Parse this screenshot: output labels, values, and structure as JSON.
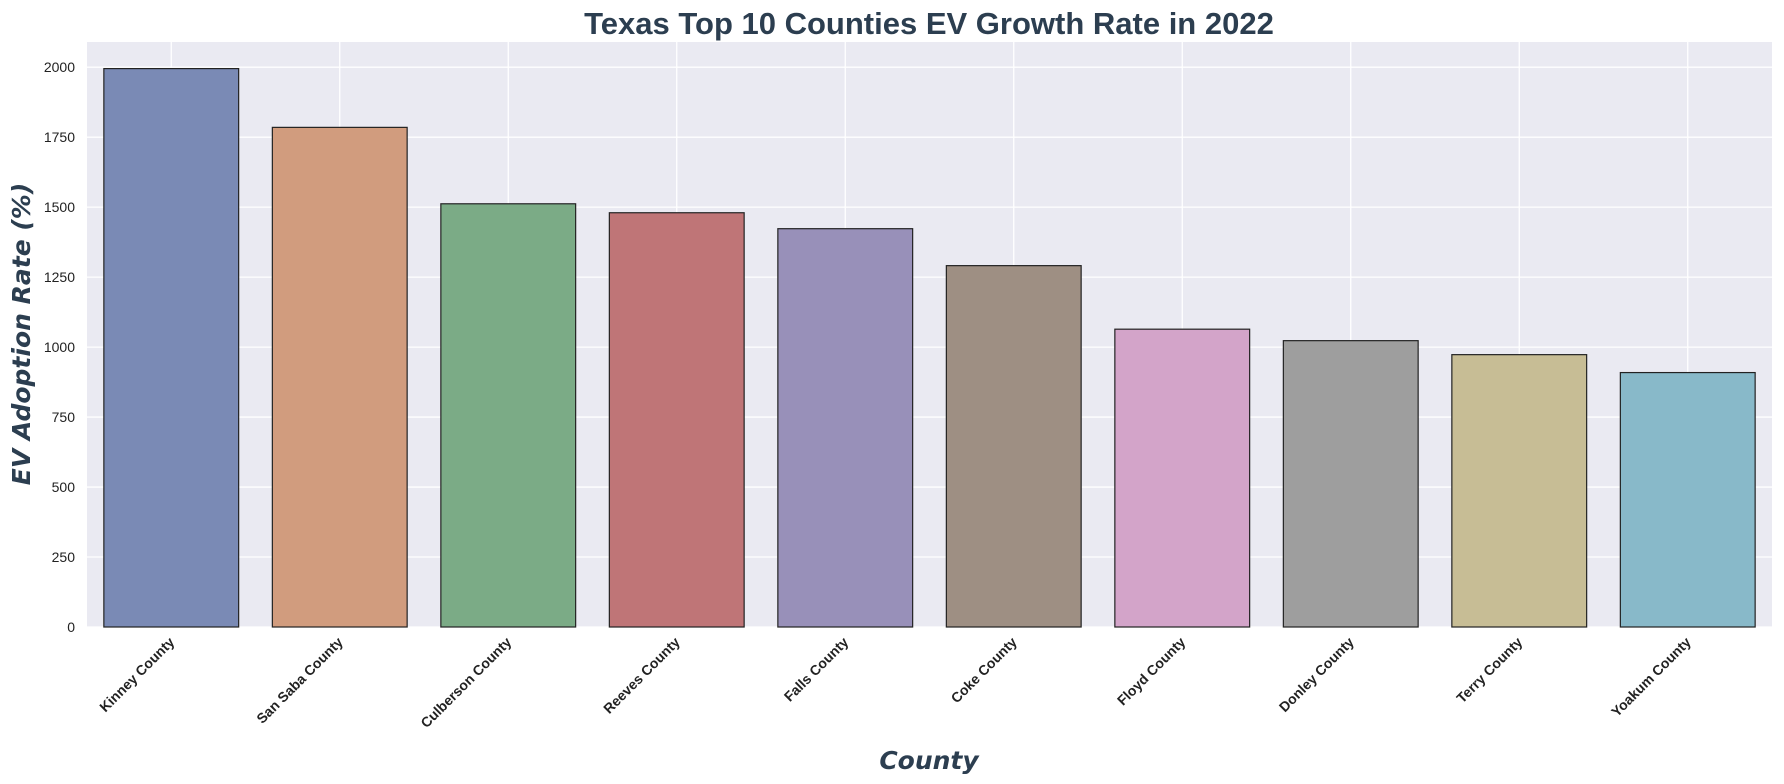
{
  "chart_data": {
    "type": "bar",
    "title": "Texas Top 10 Counties EV Growth Rate in 2022",
    "xlabel": "County",
    "ylabel": "EV Adoption Rate (%)",
    "categories": [
      "Kinney County",
      "San Saba County",
      "Culberson County",
      "Reeves County",
      "Falls County",
      "Coke County",
      "Floyd County",
      "Donley County",
      "Terry County",
      "Yoakum County"
    ],
    "values": [
      1995,
      1785,
      1512,
      1480,
      1423,
      1291,
      1064,
      1023,
      973,
      909
    ],
    "ylim": [
      0,
      2090
    ],
    "yticks": [
      0,
      250,
      500,
      750,
      1000,
      1250,
      1500,
      1750,
      2000
    ],
    "grid": true,
    "colors": [
      "#7a8ab5",
      "#d19c7e",
      "#7bab86",
      "#bf7577",
      "#9890b9",
      "#9e8f83",
      "#d3a4c9",
      "#9e9e9e",
      "#c7bd95",
      "#88b9c9"
    ],
    "edge_color": "#222222",
    "background_color": "#eaeaf2"
  }
}
